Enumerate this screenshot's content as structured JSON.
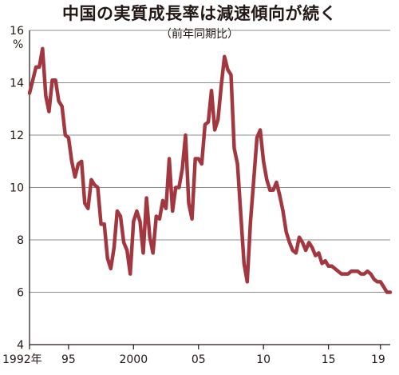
{
  "title": "中国の実質成長率は減速傾向が続く",
  "subtitle": "（前年同期比）",
  "colors": {
    "line": "#a3373f",
    "grid": "#8c8c8c",
    "axis": "#231815"
  },
  "chart_data": {
    "type": "line",
    "title": "中国の実質成長率は減速傾向が続く",
    "subtitle": "（前年同期比）",
    "ylabel": "%",
    "xlabel": "",
    "ylim": [
      4,
      16
    ],
    "y_ticks": [
      4,
      6,
      8,
      10,
      12,
      14,
      16
    ],
    "y_unit": "%",
    "x_range": [
      1992,
      2019.75
    ],
    "x_ticks": [
      {
        "x": 1992,
        "label": "1992年"
      },
      {
        "x": 1995,
        "label": "95"
      },
      {
        "x": 2000,
        "label": "2000"
      },
      {
        "x": 2005,
        "label": "05"
      },
      {
        "x": 2010,
        "label": "10"
      },
      {
        "x": 2015,
        "label": "15"
      },
      {
        "x": 2019,
        "label": "19"
      }
    ],
    "grid": true,
    "series": [
      {
        "x": [
          1992.0,
          1992.25,
          1992.5,
          1992.75,
          1993.0,
          1993.25,
          1993.5,
          1993.75,
          1994.0,
          1994.25,
          1994.5,
          1994.75,
          1995.0,
          1995.25,
          1995.5,
          1995.75,
          1996.0,
          1996.25,
          1996.5,
          1996.75,
          1997.0,
          1997.25,
          1997.5,
          1997.75,
          1998.0,
          1998.25,
          1998.5,
          1998.75,
          1999.0,
          1999.25,
          1999.5,
          1999.75,
          2000.0,
          2000.25,
          2000.5,
          2000.75,
          2001.0,
          2001.25,
          2001.5,
          2001.75,
          2002.0,
          2002.25,
          2002.5,
          2002.75,
          2003.0,
          2003.25,
          2003.5,
          2003.75,
          2004.0,
          2004.25,
          2004.5,
          2004.75,
          2005.0,
          2005.25,
          2005.5,
          2005.75,
          2006.0,
          2006.25,
          2006.5,
          2006.75,
          2007.0,
          2007.25,
          2007.5,
          2007.75,
          2008.0,
          2008.25,
          2008.5,
          2008.75,
          2009.0,
          2009.25,
          2009.5,
          2009.75,
          2010.0,
          2010.25,
          2010.5,
          2010.75,
          2011.0,
          2011.25,
          2011.5,
          2011.75,
          2012.0,
          2012.25,
          2012.5,
          2012.75,
          2013.0,
          2013.25,
          2013.5,
          2013.75,
          2014.0,
          2014.25,
          2014.5,
          2014.75,
          2015.0,
          2015.25,
          2015.5,
          2015.75,
          2016.0,
          2016.25,
          2016.5,
          2016.75,
          2017.0,
          2017.25,
          2017.5,
          2017.75,
          2018.0,
          2018.25,
          2018.5,
          2018.75,
          2019.0,
          2019.25,
          2019.5,
          2019.75
        ],
        "y": [
          13.6,
          14.1,
          14.6,
          14.6,
          15.3,
          13.5,
          12.9,
          14.1,
          14.1,
          13.3,
          13.1,
          12.0,
          11.9,
          11.0,
          10.4,
          10.9,
          11.0,
          9.4,
          9.2,
          10.3,
          10.1,
          10.0,
          8.6,
          8.6,
          7.3,
          6.9,
          7.7,
          9.1,
          8.9,
          7.9,
          7.6,
          6.7,
          8.7,
          9.1,
          8.7,
          7.5,
          9.6,
          8.1,
          7.5,
          8.9,
          8.8,
          9.5,
          9.2,
          11.1,
          9.1,
          10.0,
          10.0,
          10.7,
          12.0,
          9.4,
          8.8,
          11.1,
          11.1,
          10.9,
          12.4,
          12.5,
          13.7,
          12.2,
          12.6,
          13.9,
          15.0,
          14.5,
          14.3,
          11.5,
          10.9,
          9.0,
          7.1,
          6.4,
          8.7,
          10.3,
          11.9,
          12.2,
          11.0,
          10.3,
          9.9,
          9.9,
          10.2,
          9.7,
          9.1,
          8.3,
          7.9,
          7.6,
          7.5,
          8.1,
          7.9,
          7.6,
          7.9,
          7.7,
          7.4,
          7.5,
          7.1,
          7.2,
          7.0,
          7.0,
          6.9,
          6.8,
          6.7,
          6.7,
          6.7,
          6.8,
          6.8,
          6.8,
          6.7,
          6.7,
          6.8,
          6.7,
          6.5,
          6.4,
          6.4,
          6.2,
          6.0,
          6.0
        ]
      }
    ]
  }
}
